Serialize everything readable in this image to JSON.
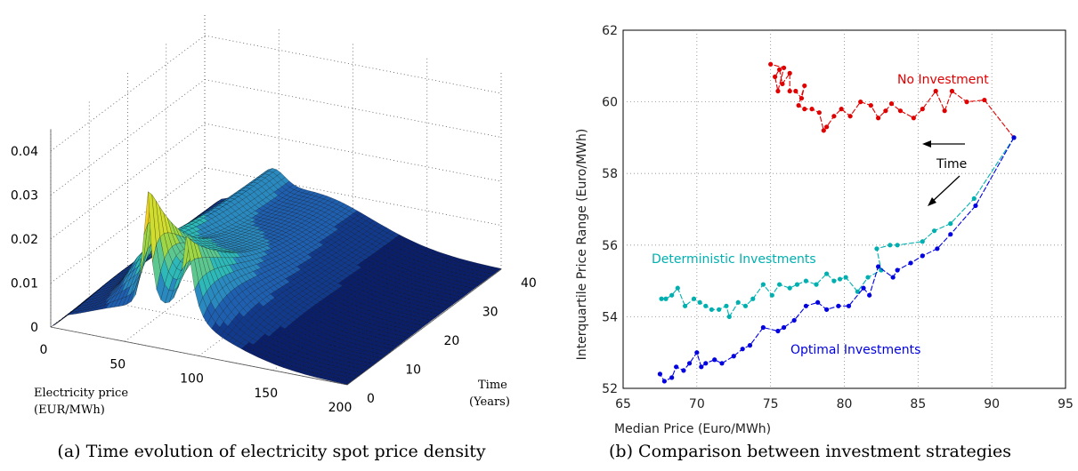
{
  "captions": {
    "a": "(a) Time evolution of electricity spot price density",
    "b": "(b) Comparison between investment strategies"
  },
  "chart_data": [
    {
      "type": "surface",
      "title": "",
      "x_axis": {
        "label_line1": "Electricity price",
        "label_line2": "(EUR/MWh)",
        "range": [
          0,
          200
        ],
        "ticks": [
          "0",
          "50",
          "100",
          "150",
          "200"
        ]
      },
      "y_axis": {
        "label_line1": "Time",
        "label_line2": "(Years)",
        "range": [
          0,
          40
        ],
        "ticks": [
          "0",
          "10",
          "20",
          "30",
          "40"
        ]
      },
      "z_axis": {
        "label": "",
        "range": [
          0,
          0.045
        ],
        "ticks": [
          "0",
          "0.01",
          "0.02",
          "0.03",
          "0.04"
        ]
      },
      "colormap": "jet",
      "description_values": {
        "peak_at_time0": {
          "price": 65,
          "density": 0.042
        },
        "second_peak_at_time0": {
          "price": 92,
          "density": 0.03
        },
        "long_horizon_density": 0.009
      },
      "grid": true
    },
    {
      "type": "scatter",
      "title": "",
      "xlabel": "Median Price (Euro/MWh)",
      "ylabel": "Interquartile Price Range (Euro/MWh)",
      "xlim": [
        65,
        95
      ],
      "ylim": [
        52,
        62
      ],
      "x_ticks": [
        "65",
        "70",
        "75",
        "80",
        "85",
        "90",
        "95"
      ],
      "y_ticks": [
        "52",
        "54",
        "56",
        "58",
        "60",
        "62"
      ],
      "grid": true,
      "annotations": {
        "time_label": "Time"
      },
      "series": [
        {
          "name": "No Investment",
          "color": "#e00000",
          "points": [
            [
              91.5,
              59.0
            ],
            [
              89.5,
              60.05
            ],
            [
              88.3,
              60.0
            ],
            [
              87.3,
              60.3
            ],
            [
              86.8,
              59.75
            ],
            [
              86.2,
              60.3
            ],
            [
              85.3,
              59.8
            ],
            [
              84.7,
              59.55
            ],
            [
              83.8,
              59.75
            ],
            [
              83.2,
              59.95
            ],
            [
              82.8,
              59.75
            ],
            [
              82.3,
              59.55
            ],
            [
              81.8,
              59.9
            ],
            [
              81.1,
              60.0
            ],
            [
              80.4,
              59.6
            ],
            [
              79.8,
              59.8
            ],
            [
              79.3,
              59.6
            ],
            [
              78.8,
              59.3
            ],
            [
              78.6,
              59.2
            ],
            [
              78.3,
              59.7
            ],
            [
              77.8,
              59.8
            ],
            [
              77.3,
              59.8
            ],
            [
              76.9,
              59.9
            ],
            [
              77.3,
              60.45
            ],
            [
              77.1,
              60.1
            ],
            [
              76.7,
              60.3
            ],
            [
              76.3,
              60.3
            ],
            [
              76.3,
              60.8
            ],
            [
              75.8,
              60.5
            ],
            [
              75.6,
              60.9
            ],
            [
              75.3,
              60.7
            ],
            [
              75.5,
              60.3
            ],
            [
              75.9,
              60.95
            ],
            [
              75.0,
              61.05
            ]
          ]
        },
        {
          "name": "Deterministic Investments",
          "color": "#00b0b0",
          "points": [
            [
              91.5,
              59.0
            ],
            [
              88.8,
              57.3
            ],
            [
              87.2,
              56.6
            ],
            [
              86.1,
              56.4
            ],
            [
              85.3,
              56.1
            ],
            [
              83.6,
              56.0
            ],
            [
              83.1,
              56.0
            ],
            [
              82.2,
              55.9
            ],
            [
              82.5,
              55.3
            ],
            [
              81.6,
              55.1
            ],
            [
              80.9,
              54.7
            ],
            [
              80.1,
              55.1
            ],
            [
              79.7,
              55.05
            ],
            [
              79.3,
              55.0
            ],
            [
              78.8,
              55.2
            ],
            [
              78.1,
              54.9
            ],
            [
              77.4,
              55.0
            ],
            [
              76.8,
              54.9
            ],
            [
              76.3,
              54.8
            ],
            [
              75.6,
              54.9
            ],
            [
              75.1,
              54.6
            ],
            [
              74.5,
              54.9
            ],
            [
              73.8,
              54.5
            ],
            [
              73.3,
              54.3
            ],
            [
              72.8,
              54.4
            ],
            [
              72.2,
              54.0
            ],
            [
              72.0,
              54.3
            ],
            [
              71.5,
              54.2
            ],
            [
              71.0,
              54.2
            ],
            [
              70.6,
              54.3
            ],
            [
              70.2,
              54.4
            ],
            [
              69.8,
              54.5
            ],
            [
              69.2,
              54.3
            ],
            [
              68.7,
              54.8
            ],
            [
              68.3,
              54.6
            ],
            [
              67.9,
              54.5
            ],
            [
              67.6,
              54.5
            ]
          ]
        },
        {
          "name": "Optimal Investments",
          "color": "#0000e0",
          "points": [
            [
              91.5,
              59.0
            ],
            [
              88.9,
              57.1
            ],
            [
              87.2,
              56.3
            ],
            [
              86.3,
              55.9
            ],
            [
              85.3,
              55.7
            ],
            [
              84.5,
              55.5
            ],
            [
              83.6,
              55.3
            ],
            [
              83.3,
              55.1
            ],
            [
              82.3,
              55.4
            ],
            [
              81.7,
              54.6
            ],
            [
              81.3,
              54.8
            ],
            [
              80.3,
              54.3
            ],
            [
              79.6,
              54.3
            ],
            [
              78.8,
              54.2
            ],
            [
              78.2,
              54.4
            ],
            [
              77.4,
              54.3
            ],
            [
              76.6,
              53.9
            ],
            [
              75.9,
              53.7
            ],
            [
              75.5,
              53.6
            ],
            [
              74.5,
              53.7
            ],
            [
              73.6,
              53.2
            ],
            [
              73.1,
              53.1
            ],
            [
              72.5,
              52.9
            ],
            [
              71.7,
              52.7
            ],
            [
              71.2,
              52.8
            ],
            [
              70.6,
              52.7
            ],
            [
              70.3,
              52.6
            ],
            [
              70.0,
              53.0
            ],
            [
              69.5,
              52.7
            ],
            [
              69.1,
              52.5
            ],
            [
              68.6,
              52.6
            ],
            [
              68.3,
              52.3
            ],
            [
              67.8,
              52.2
            ],
            [
              67.5,
              52.4
            ]
          ]
        }
      ]
    }
  ]
}
